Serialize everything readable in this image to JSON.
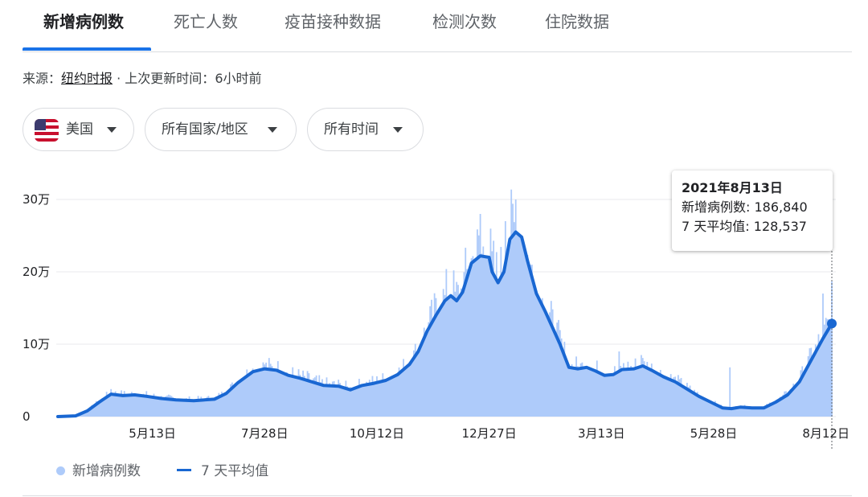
{
  "tabs": [
    {
      "label": "新增病例数",
      "active": true
    },
    {
      "label": "死亡人数",
      "active": false
    },
    {
      "label": "疫苗接种数据",
      "active": false
    },
    {
      "label": "检测次数",
      "active": false
    },
    {
      "label": "住院数据",
      "active": false
    }
  ],
  "source": {
    "prefix": "来源：",
    "name": "纽约时报",
    "separator": " · ",
    "updated_label": "上次更新时间：",
    "updated_value": "6小时前"
  },
  "filters": {
    "country": {
      "label": "美国",
      "icon": "us-flag-icon"
    },
    "region": {
      "label": "所有国家/地区"
    },
    "time": {
      "label": "所有时间"
    }
  },
  "tooltip": {
    "date": "2021年8月13日",
    "cases_label": "新增病例数:",
    "cases_value": "186,840",
    "avg_label": "7 天平均值:",
    "avg_value": "128,537"
  },
  "legend": {
    "cases": "新增病例数",
    "avg": "7 天平均值"
  },
  "colors": {
    "bars": "#aecbfa",
    "average_line": "#1967d2",
    "active_tab": "#1a73e8"
  },
  "chart_data": {
    "type": "bar",
    "ylim": [
      0,
      300000
    ],
    "y_ticks": [
      {
        "value": 0,
        "label": "0"
      },
      {
        "value": 100000,
        "label": "10万"
      },
      {
        "value": 200000,
        "label": "20万"
      },
      {
        "value": 300000,
        "label": "30万"
      }
    ],
    "x_ticks": [
      {
        "day": 64,
        "label": "5月13日"
      },
      {
        "day": 140,
        "label": "7月28日"
      },
      {
        "day": 216,
        "label": "10月12日"
      },
      {
        "day": 292,
        "label": "12月27日"
      },
      {
        "day": 368,
        "label": "3月13日"
      },
      {
        "day": 444,
        "label": "5月28日"
      },
      {
        "day": 520,
        "label": "8月12日"
      }
    ],
    "series": [
      {
        "name": "7 天平均值",
        "kind": "line",
        "points": [
          [
            0,
            0
          ],
          [
            12,
            1000
          ],
          [
            20,
            8000
          ],
          [
            28,
            20000
          ],
          [
            36,
            31000
          ],
          [
            44,
            29000
          ],
          [
            52,
            30000
          ],
          [
            60,
            28000
          ],
          [
            70,
            25000
          ],
          [
            80,
            23000
          ],
          [
            92,
            22000
          ],
          [
            106,
            24000
          ],
          [
            114,
            32000
          ],
          [
            122,
            47000
          ],
          [
            132,
            62000
          ],
          [
            140,
            66000
          ],
          [
            148,
            64000
          ],
          [
            156,
            57000
          ],
          [
            164,
            53000
          ],
          [
            172,
            48000
          ],
          [
            180,
            43000
          ],
          [
            190,
            42000
          ],
          [
            198,
            37000
          ],
          [
            206,
            43000
          ],
          [
            214,
            46000
          ],
          [
            222,
            50000
          ],
          [
            230,
            58000
          ],
          [
            238,
            72000
          ],
          [
            244,
            90000
          ],
          [
            250,
            118000
          ],
          [
            256,
            140000
          ],
          [
            262,
            160000
          ],
          [
            266,
            167000
          ],
          [
            270,
            160000
          ],
          [
            274,
            172000
          ],
          [
            280,
            212000
          ],
          [
            286,
            222000
          ],
          [
            292,
            220000
          ],
          [
            294,
            200000
          ],
          [
            298,
            185000
          ],
          [
            302,
            200000
          ],
          [
            306,
            245000
          ],
          [
            310,
            255000
          ],
          [
            314,
            248000
          ],
          [
            318,
            215000
          ],
          [
            324,
            170000
          ],
          [
            330,
            145000
          ],
          [
            336,
            118000
          ],
          [
            340,
            100000
          ],
          [
            346,
            68000
          ],
          [
            352,
            66000
          ],
          [
            358,
            68000
          ],
          [
            364,
            63000
          ],
          [
            370,
            57000
          ],
          [
            376,
            58000
          ],
          [
            382,
            65000
          ],
          [
            390,
            66000
          ],
          [
            396,
            70000
          ],
          [
            402,
            64000
          ],
          [
            410,
            55000
          ],
          [
            418,
            48000
          ],
          [
            426,
            38000
          ],
          [
            434,
            28000
          ],
          [
            442,
            20000
          ],
          [
            450,
            12000
          ],
          [
            456,
            11000
          ],
          [
            462,
            13000
          ],
          [
            470,
            12000
          ],
          [
            478,
            12000
          ],
          [
            486,
            20000
          ],
          [
            494,
            30000
          ],
          [
            502,
            48000
          ],
          [
            510,
            78000
          ],
          [
            518,
            108000
          ],
          [
            524,
            128537
          ]
        ]
      },
      {
        "name": "新增病例数",
        "kind": "bar",
        "peaks": [
          [
            36,
            38000
          ],
          [
            140,
            72000
          ],
          [
            286,
            280000
          ],
          [
            303,
            270000
          ],
          [
            310,
            300000
          ],
          [
            380,
            90000
          ],
          [
            395,
            85000
          ],
          [
            455,
            68000
          ],
          [
            510,
            95000
          ],
          [
            518,
            170000
          ],
          [
            524,
            186840
          ]
        ]
      }
    ],
    "highlight": {
      "day": 524,
      "date": "2021年8月13日",
      "cases": 186840,
      "average": 128537
    }
  }
}
